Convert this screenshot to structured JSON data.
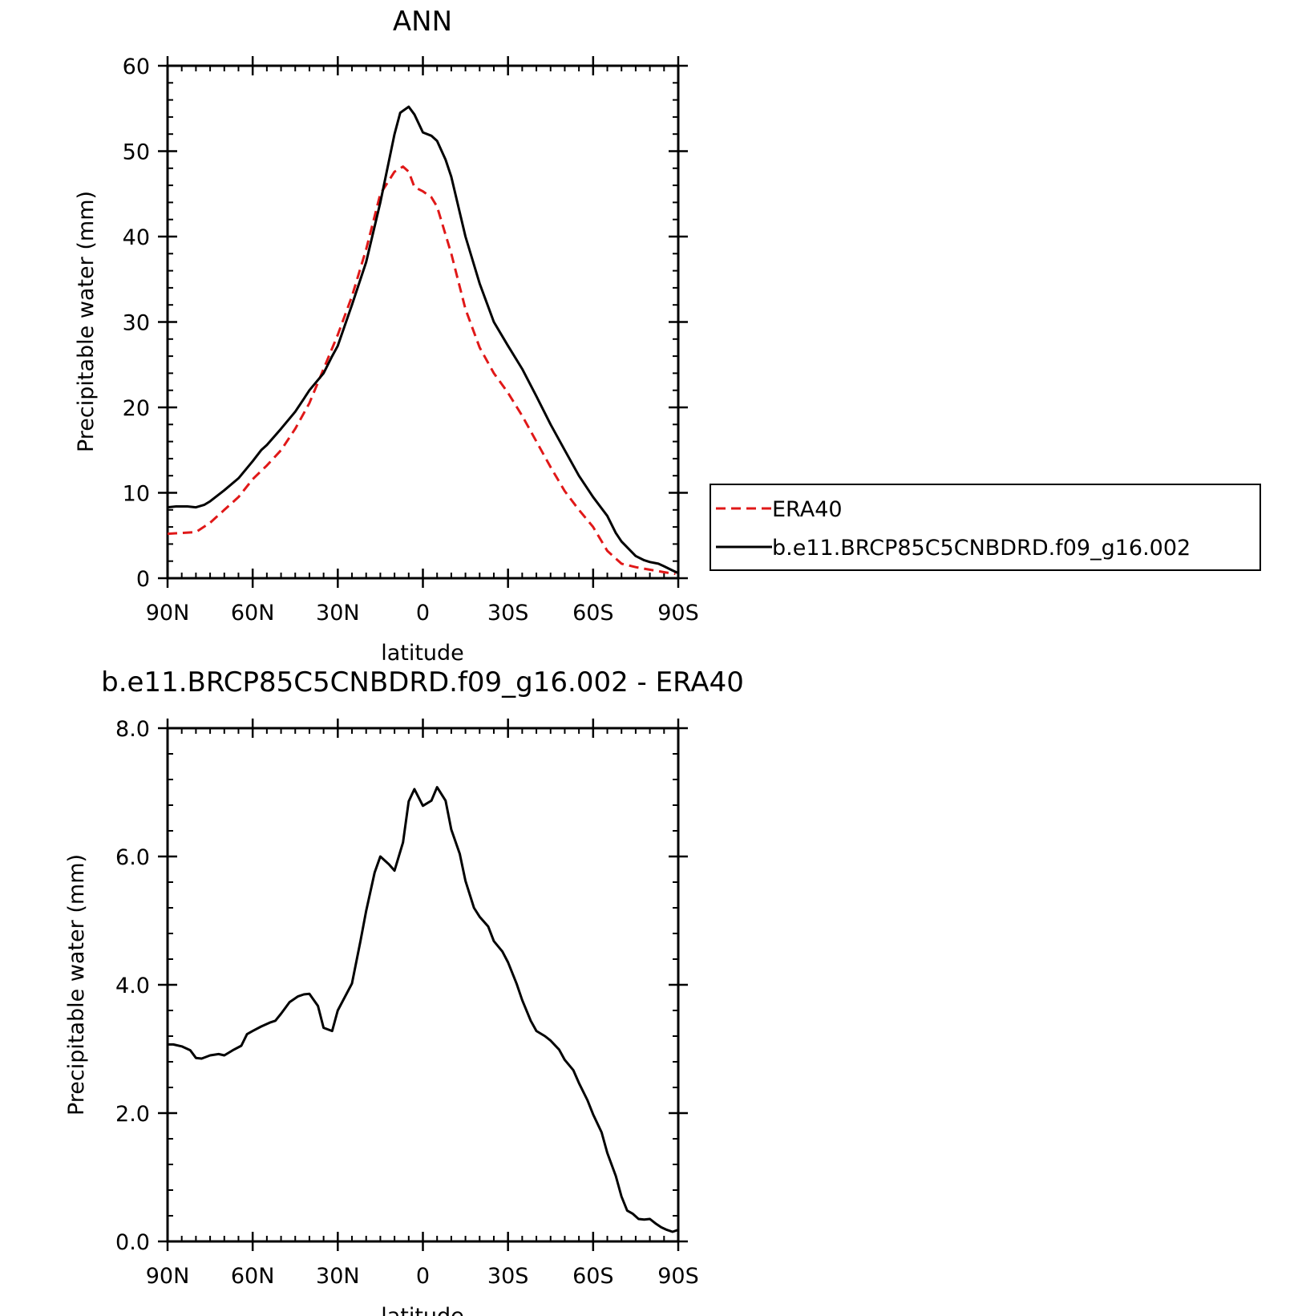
{
  "chart_data": [
    {
      "type": "line",
      "title": "ANN",
      "xlabel": "latitude",
      "ylabel": "Precipitable water (mm)",
      "x_ticks": [
        "90N",
        "60N",
        "30N",
        "0",
        "30S",
        "60S",
        "90S"
      ],
      "y_ticks": [
        "0",
        "10",
        "20",
        "30",
        "40",
        "50",
        "60"
      ],
      "xlim": [
        90,
        -90
      ],
      "ylim": [
        0,
        60
      ],
      "grid": false,
      "legend_position": "right",
      "series": [
        {
          "name": "ERA40",
          "color": "#e01818",
          "dash": "dashed",
          "x": [
            90,
            85,
            80,
            75,
            70,
            65,
            60,
            55,
            50,
            45,
            40,
            35,
            30,
            25,
            20,
            15,
            10,
            7,
            5,
            3,
            0,
            -3,
            -5,
            -10,
            -15,
            -20,
            -25,
            -30,
            -35,
            -40,
            -45,
            -50,
            -55,
            -60,
            -65,
            -70,
            -75,
            -80,
            -85,
            -89
          ],
          "y": [
            5.2,
            5.3,
            5.4,
            6.5,
            8,
            9.5,
            11.6,
            13.2,
            15,
            17.5,
            20.5,
            24.5,
            28.5,
            33,
            38.5,
            45,
            47.6,
            48.2,
            47.6,
            45.8,
            45.3,
            44.6,
            43.5,
            38,
            31.5,
            27,
            24,
            21.7,
            19,
            16,
            13,
            10.2,
            8,
            6,
            3.2,
            1.7,
            1.3,
            1.0,
            0.7,
            0.5
          ]
        },
        {
          "name": "b.e11.BRCP85C5CNBDRD.f09_g16.002",
          "color": "#000000",
          "dash": "solid",
          "x": [
            90,
            87,
            83,
            80,
            77,
            75,
            70,
            65,
            60,
            57,
            55,
            50,
            45,
            42,
            40,
            35,
            32,
            30,
            25,
            20,
            15,
            10,
            8,
            5,
            3,
            0,
            -3,
            -5,
            -8,
            -10,
            -15,
            -20,
            -25,
            -30,
            -35,
            -40,
            -45,
            -50,
            -55,
            -60,
            -65,
            -68,
            -70,
            -75,
            -78,
            -80,
            -83,
            -85,
            -88,
            -90
          ],
          "y": [
            8.3,
            8.4,
            8.4,
            8.3,
            8.6,
            9.0,
            10.3,
            11.7,
            13.7,
            15,
            15.6,
            17.5,
            19.5,
            21,
            22,
            24,
            26,
            27.2,
            32,
            37,
            44,
            52,
            54.5,
            55.2,
            54.3,
            52.2,
            51.8,
            51.2,
            49,
            47,
            40,
            34.5,
            30,
            27.2,
            24.5,
            21.3,
            18,
            15,
            12,
            9.5,
            7.3,
            5.3,
            4.3,
            2.6,
            2.1,
            1.9,
            1.7,
            1.4,
            0.9,
            0.6
          ]
        }
      ]
    },
    {
      "type": "line",
      "title": "b.e11.BRCP85C5CNBDRD.f09_g16.002 - ERA40",
      "xlabel": "latitude",
      "ylabel": "Precipitable water (mm)",
      "x_ticks": [
        "90N",
        "60N",
        "30N",
        "0",
        "30S",
        "60S",
        "90S"
      ],
      "y_ticks": [
        "0.0",
        "2.0",
        "4.0",
        "6.0",
        "8.0"
      ],
      "xlim": [
        90,
        -90
      ],
      "ylim": [
        0,
        8
      ],
      "grid": false,
      "series": [
        {
          "color": "#000000",
          "dash": "solid",
          "x": [
            90,
            88,
            85,
            82,
            80,
            78,
            75,
            72,
            70,
            67,
            64,
            62,
            60,
            57,
            54,
            52,
            50,
            47,
            44,
            42,
            40,
            37,
            35,
            32,
            30,
            25,
            22,
            20,
            17,
            15,
            12,
            10,
            7,
            5,
            3,
            0,
            -3,
            -5,
            -8,
            -10,
            -13,
            -15,
            -18,
            -20,
            -23,
            -25,
            -28,
            -30,
            -33,
            -35,
            -38,
            -40,
            -43,
            -45,
            -48,
            -50,
            -53,
            -55,
            -58,
            -60,
            -63,
            -65,
            -68,
            -70,
            -72,
            -74,
            -76,
            -78,
            -80,
            -82,
            -84,
            -86,
            -88,
            -90
          ],
          "y": [
            3.07,
            3.07,
            3.04,
            2.98,
            2.86,
            2.85,
            2.9,
            2.92,
            2.9,
            2.98,
            3.05,
            3.23,
            3.28,
            3.35,
            3.41,
            3.44,
            3.55,
            3.73,
            3.82,
            3.85,
            3.86,
            3.67,
            3.33,
            3.28,
            3.6,
            4.02,
            4.68,
            5.15,
            5.75,
            6.0,
            5.88,
            5.78,
            6.22,
            6.86,
            7.05,
            6.79,
            6.87,
            7.08,
            6.87,
            6.42,
            6.04,
            5.62,
            5.2,
            5.06,
            4.91,
            4.68,
            4.52,
            4.35,
            4.02,
            3.76,
            3.44,
            3.28,
            3.2,
            3.13,
            2.99,
            2.83,
            2.67,
            2.47,
            2.2,
            1.98,
            1.7,
            1.38,
            1.02,
            0.7,
            0.48,
            0.43,
            0.35,
            0.34,
            0.35,
            0.28,
            0.22,
            0.18,
            0.15,
            0.18
          ]
        }
      ]
    }
  ]
}
